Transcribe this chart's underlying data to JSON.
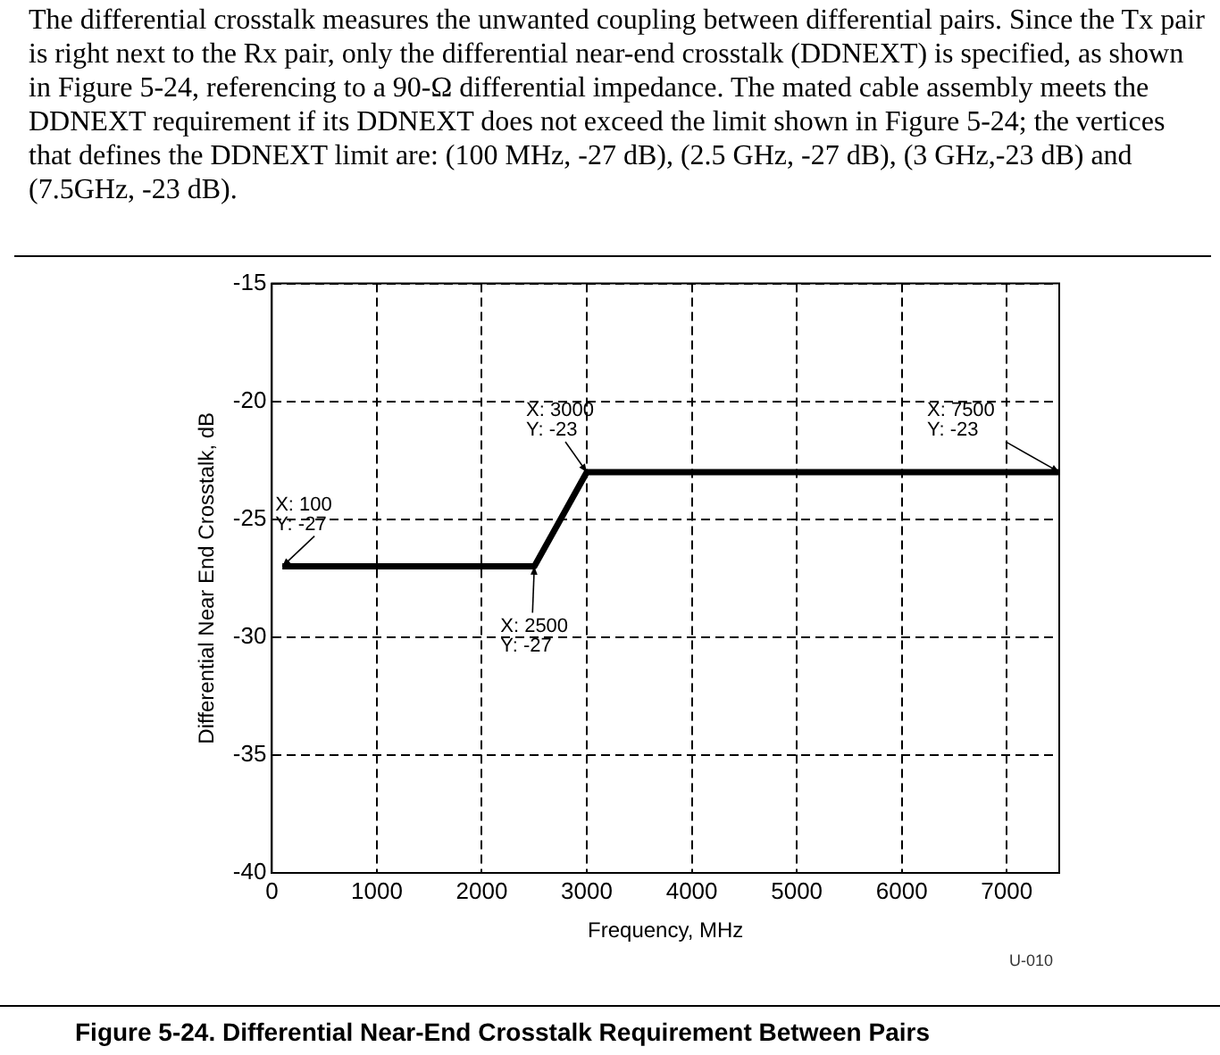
{
  "chart_data": {
    "type": "line",
    "subtitle": "The differential crosstalk measures the unwanted coupling between differential pairs.  Since the Tx pair is right next to the Rx pair, only the differential near-end crosstalk (DDNEXT) is specified, as shown in Figure 5-24, referencing to a 90-Ω differential impedance.  The mated cable assembly meets the DDNEXT requirement if its DDNEXT does not exceed the limit shown in Figure 5-24; the vertices that defines the DDNEXT limit are: (100 MHz, -27 dB), (2.5 GHz, -27 dB), (3 GHz,-23 dB) and (7.5GHz, -23 dB).",
    "title": "Figure 5-24.  Differential Near-End Crosstalk Requirement Between Pairs",
    "xlabel": "Frequency, MHz",
    "ylabel": "Differential Near End Crosstalk, dB",
    "x": [
      100,
      2500,
      3000,
      7500
    ],
    "series": [
      {
        "color": "#000000",
        "values": [
          -27,
          -27,
          -23,
          -23
        ]
      }
    ],
    "xlim": [
      0,
      7500
    ],
    "xticks": [
      0,
      1000,
      2000,
      3000,
      4000,
      5000,
      6000,
      7000
    ],
    "ylim": [
      -40,
      -15
    ],
    "yticks": [
      -40,
      -35,
      -30,
      -25,
      -20,
      -15
    ],
    "grid": true,
    "legend": false,
    "marker": "none",
    "line_style": "solid",
    "annotations": [
      {
        "text": "X: 100\nY: -27",
        "x": 100,
        "y": -27
      },
      {
        "text": "X: 2500\nY: -27",
        "x": 2500,
        "y": -27
      },
      {
        "text": "X: 3000\nY: -23",
        "x": 3000,
        "y": -23
      },
      {
        "text": "X: 7500\nY: -23",
        "x": 7500,
        "y": -23
      },
      "U-010"
    ]
  }
}
